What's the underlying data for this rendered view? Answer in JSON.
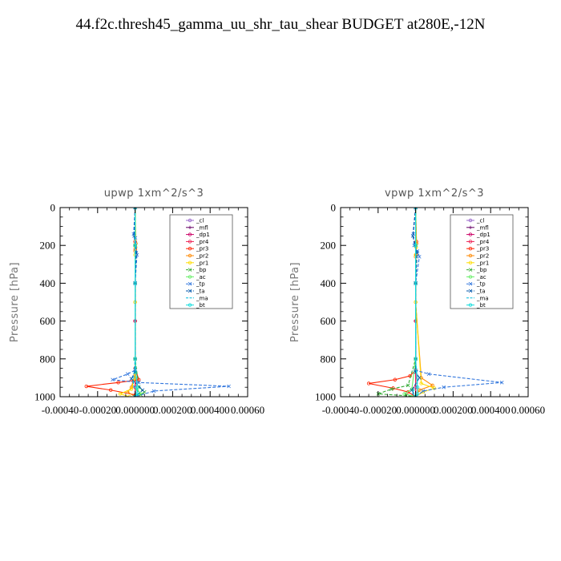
{
  "title": "44.f2c.thresh45_gamma_uu_shr_tau_shear  BUDGET at280E,-12N",
  "chart_data": [
    {
      "type": "line",
      "title": "upwp   1xm^2/s^3",
      "ylabel": "Pressure [hPa]",
      "xlim": [
        -0.0004,
        0.0006
      ],
      "ylim": [
        1000,
        0
      ],
      "y_inverted": true,
      "x_ticks": [
        "-0.00040",
        "-0.00020",
        "0.000000",
        "0.000200",
        "0.000400",
        "0.00060"
      ],
      "y_ticks": [
        0,
        200,
        400,
        600,
        800,
        1000
      ],
      "legend_position": "top-right",
      "series": [
        {
          "name": "_cl",
          "color": "#9966cc",
          "marker": "o",
          "x": [
            0,
            0,
            0,
            0,
            0,
            0
          ],
          "y": [
            0,
            200,
            400,
            600,
            800,
            1000
          ]
        },
        {
          "name": "_mfl",
          "color": "#660066",
          "marker": "+",
          "x": [
            0,
            0,
            0,
            0,
            0,
            0
          ],
          "y": [
            0,
            200,
            400,
            600,
            800,
            1000
          ]
        },
        {
          "name": "_dp1",
          "color": "#cc0066",
          "marker": "o",
          "x": [
            0,
            0,
            0,
            0,
            0,
            0,
            0
          ],
          "y": [
            0,
            200,
            400,
            600,
            800,
            950,
            1000
          ]
        },
        {
          "name": "_pr4",
          "color": "#ee2255",
          "marker": "o",
          "x": [
            0,
            0,
            0,
            0,
            0,
            0
          ],
          "y": [
            0,
            200,
            400,
            600,
            800,
            1000
          ]
        },
        {
          "name": "_pr3",
          "color": "#ff2200",
          "marker": "o",
          "x": [
            0,
            0,
            1e-06,
            0,
            0,
            2e-05,
            -9e-05,
            -0.00026,
            -0.00013,
            0
          ],
          "y": [
            0,
            180,
            220,
            400,
            850,
            910,
            925,
            945,
            965,
            990
          ]
        },
        {
          "name": "_pr2",
          "color": "#ff8800",
          "marker": "o",
          "x": [
            0,
            4e-06,
            0,
            0,
            0,
            -2e-05,
            -4e-05,
            0
          ],
          "y": [
            0,
            190,
            230,
            500,
            880,
            950,
            975,
            1000
          ]
        },
        {
          "name": "_pr1",
          "color": "#ffdd00",
          "marker": "o",
          "x": [
            0,
            3e-06,
            0,
            0,
            0,
            -2e-05,
            -8e-05,
            -3e-05,
            0
          ],
          "y": [
            0,
            210,
            250,
            500,
            900,
            960,
            985,
            1000,
            1000
          ]
        },
        {
          "name": "_bp",
          "color": "#33aa33",
          "marker": "x",
          "x": [
            0,
            0,
            0,
            0,
            2e-05,
            5e-05,
            3e-05,
            0
          ],
          "y": [
            0,
            200,
            400,
            800,
            950,
            975,
            990,
            1000
          ]
        },
        {
          "name": "_ac",
          "color": "#66ee66",
          "marker": "o",
          "x": [
            0,
            0,
            0,
            0,
            1e-05,
            3e-05,
            0
          ],
          "y": [
            0,
            200,
            400,
            800,
            960,
            985,
            1000
          ]
        },
        {
          "name": "_tp",
          "color": "#3377dd",
          "marker": "x",
          "x": [
            0,
            -8e-06,
            2e-06,
            1e-05,
            0,
            0,
            -4e-05,
            -0.00012,
            2e-05,
            0.0005,
            0.0001,
            0
          ],
          "y": [
            0,
            140,
            160,
            250,
            400,
            860,
            880,
            910,
            925,
            945,
            970,
            1000
          ]
        },
        {
          "name": "_ta",
          "color": "#0055aa",
          "marker": "x",
          "x": [
            0,
            -5e-06,
            6e-06,
            0,
            0,
            -2e-05,
            4e-05,
            0
          ],
          "y": [
            0,
            150,
            240,
            400,
            870,
            905,
            965,
            1000
          ]
        },
        {
          "name": "_ma",
          "color": "#00bbdd",
          "marker": "-",
          "x": [
            0,
            0,
            0,
            0,
            -1e-05,
            2e-05,
            0
          ],
          "y": [
            0,
            200,
            400,
            800,
            940,
            980,
            1000
          ]
        },
        {
          "name": "_bt",
          "color": "#11dddd",
          "marker": "o",
          "x": [
            0,
            0,
            0,
            0,
            1e-05,
            1e-05,
            0
          ],
          "y": [
            0,
            200,
            400,
            800,
            950,
            985,
            1000
          ]
        }
      ]
    },
    {
      "type": "line",
      "title": "vpwp   1xm^2/s^3",
      "ylabel": "Pressure [hPa]",
      "xlim": [
        -0.0004,
        0.0006
      ],
      "ylim": [
        1000,
        0
      ],
      "y_inverted": true,
      "x_ticks": [
        "-0.00040",
        "-0.00020",
        "0.000000",
        "0.000200",
        "0.000400",
        "0.00060"
      ],
      "y_ticks": [
        0,
        200,
        400,
        600,
        800,
        1000
      ],
      "legend_position": "top-right",
      "series": [
        {
          "name": "_cl",
          "color": "#9966cc",
          "marker": "o",
          "x": [
            0,
            0,
            0,
            0,
            0,
            0
          ],
          "y": [
            0,
            200,
            400,
            600,
            800,
            1000
          ]
        },
        {
          "name": "_mfl",
          "color": "#660066",
          "marker": "+",
          "x": [
            0,
            0,
            0,
            0,
            0,
            0
          ],
          "y": [
            0,
            200,
            400,
            600,
            800,
            1000
          ]
        },
        {
          "name": "_dp1",
          "color": "#cc0066",
          "marker": "o",
          "x": [
            0,
            0,
            0,
            0,
            0,
            0,
            0
          ],
          "y": [
            0,
            200,
            400,
            600,
            800,
            950,
            1000
          ]
        },
        {
          "name": "_pr4",
          "color": "#ee2255",
          "marker": "o",
          "x": [
            0,
            0,
            0,
            0,
            0,
            0
          ],
          "y": [
            0,
            200,
            400,
            600,
            800,
            1000
          ]
        },
        {
          "name": "_pr3",
          "color": "#ff2200",
          "marker": "o",
          "x": [
            0,
            4e-06,
            2e-06,
            0,
            0,
            -3e-05,
            -0.00011,
            -0.00025,
            -0.00012,
            -4e-05,
            0
          ],
          "y": [
            0,
            180,
            250,
            400,
            860,
            890,
            910,
            930,
            955,
            975,
            1000
          ]
        },
        {
          "name": "_pr2",
          "color": "#ff8800",
          "marker": "o",
          "x": [
            0,
            5e-06,
            0,
            0,
            3e-05,
            9e-05,
            2e-05,
            0
          ],
          "y": [
            0,
            190,
            260,
            500,
            900,
            940,
            965,
            1000
          ]
        },
        {
          "name": "_pr1",
          "color": "#ffdd00",
          "marker": "o",
          "x": [
            0,
            3e-06,
            0,
            0,
            3e-05,
            0.0001,
            4e-05,
            0
          ],
          "y": [
            0,
            210,
            250,
            500,
            930,
            955,
            975,
            1000
          ]
        },
        {
          "name": "_bp",
          "color": "#33aa33",
          "marker": "x",
          "x": [
            0,
            0,
            0,
            0,
            -4e-05,
            -0.00013,
            -0.0002,
            -5e-05,
            0
          ],
          "y": [
            0,
            200,
            400,
            800,
            940,
            960,
            985,
            995,
            1000
          ]
        },
        {
          "name": "_ac",
          "color": "#66ee66",
          "marker": "o",
          "x": [
            0,
            0,
            0,
            0,
            -2e-05,
            -6e-05,
            0
          ],
          "y": [
            0,
            200,
            400,
            800,
            960,
            985,
            1000
          ]
        },
        {
          "name": "_tp",
          "color": "#3377dd",
          "marker": "x",
          "x": [
            0,
            -1.2e-05,
            -8e-06,
            1e-05,
            2e-05,
            0,
            0,
            7e-05,
            0.00046,
            0.00015,
            4e-05,
            0
          ],
          "y": [
            0,
            140,
            200,
            230,
            260,
            400,
            860,
            880,
            925,
            950,
            970,
            1000
          ]
        },
        {
          "name": "_ta",
          "color": "#0055aa",
          "marker": "x",
          "x": [
            0,
            -1.5e-05,
            8e-06,
            0,
            0,
            2e-05,
            -2e-05,
            0
          ],
          "y": [
            0,
            150,
            240,
            400,
            870,
            900,
            965,
            1000
          ]
        },
        {
          "name": "_ma",
          "color": "#00bbdd",
          "marker": "-",
          "x": [
            0,
            0,
            0,
            0,
            1e-05,
            -2e-05,
            0
          ],
          "y": [
            0,
            200,
            400,
            800,
            940,
            980,
            1000
          ]
        },
        {
          "name": "_bt",
          "color": "#11dddd",
          "marker": "o",
          "x": [
            0,
            0,
            0,
            0,
            1e-05,
            1e-05,
            0
          ],
          "y": [
            0,
            200,
            400,
            800,
            950,
            985,
            1000
          ]
        }
      ]
    }
  ]
}
